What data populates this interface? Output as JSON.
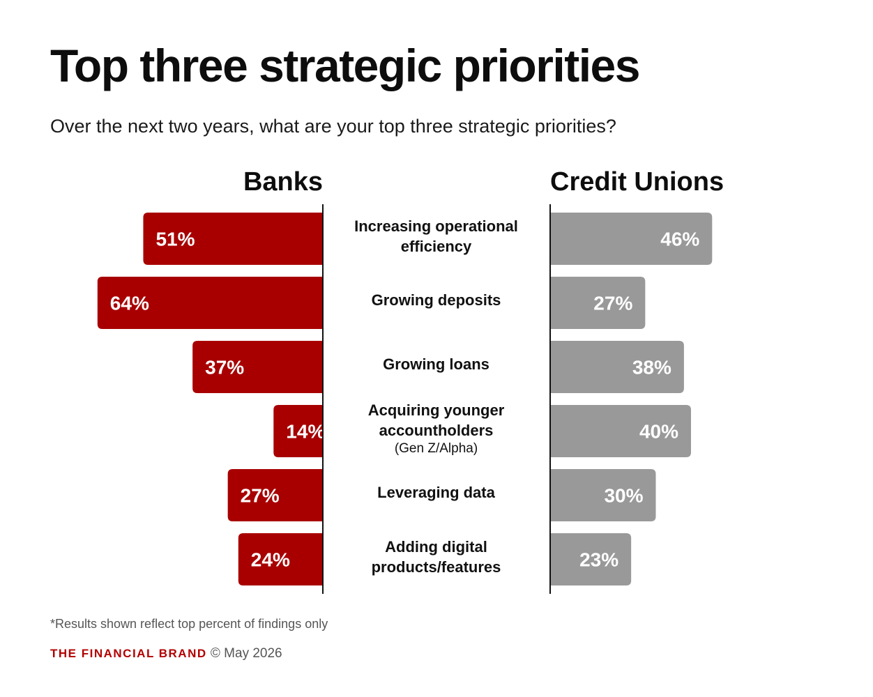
{
  "title": "Top three strategic priorities",
  "subtitle": "Over the next two years, what are your top three strategic priorities?",
  "colors": {
    "banks": "#a80000",
    "credit_unions": "#999999",
    "axis": "#111111"
  },
  "chart_data": {
    "type": "bar",
    "orientation": "horizontal-diverging",
    "categories": [
      {
        "label": "Increasing operational efficiency",
        "note": ""
      },
      {
        "label": "Growing deposits",
        "note": ""
      },
      {
        "label": "Growing loans",
        "note": ""
      },
      {
        "label": "Acquiring younger accountholders",
        "note": "(Gen Z/Alpha)"
      },
      {
        "label": "Leveraging data",
        "note": ""
      },
      {
        "label": "Adding digital products/features",
        "note": ""
      }
    ],
    "series": [
      {
        "name": "Banks",
        "values": [
          51,
          64,
          37,
          14,
          27,
          24
        ],
        "value_labels": [
          "51%",
          "64%",
          "37%",
          "14%",
          "27%",
          "24%"
        ]
      },
      {
        "name": "Credit Unions",
        "values": [
          46,
          27,
          38,
          40,
          30,
          23
        ],
        "value_labels": [
          "46%",
          "27%",
          "38%",
          "40%",
          "30%",
          "23%"
        ]
      }
    ],
    "unit": "%",
    "xlim": [
      0,
      70
    ],
    "grid": false,
    "legend": "series names as headers above each side"
  },
  "footnote": "*Results shown reflect top percent of findings only",
  "brand": "THE FINANCIAL BRAND",
  "copyright": "© May 2026"
}
